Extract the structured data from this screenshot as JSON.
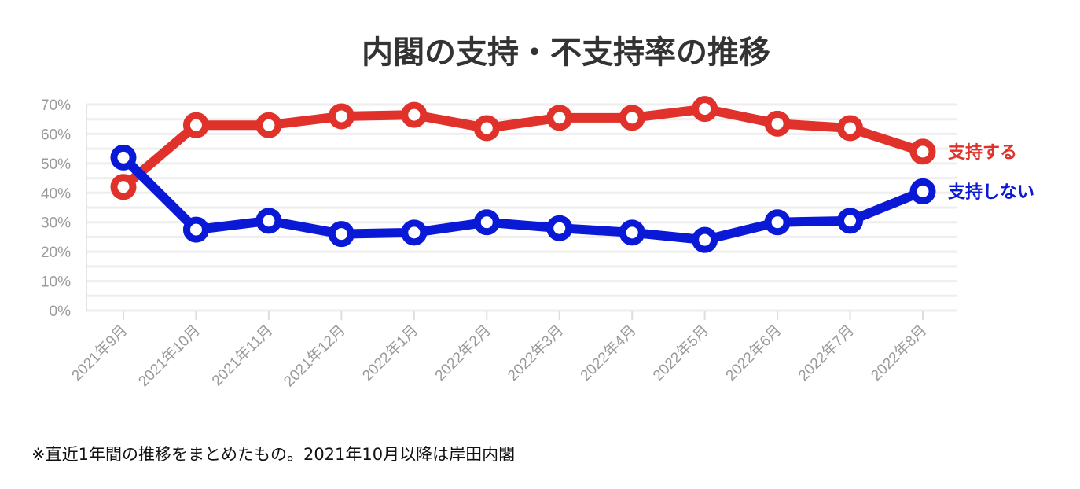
{
  "chart_data": {
    "type": "line",
    "title": "内閣の支持・不支持率の推移",
    "xlabel": "",
    "ylabel": "",
    "ylim": [
      0,
      70
    ],
    "y_ticks": [
      "0%",
      "10%",
      "20%",
      "30%",
      "40%",
      "50%",
      "60%",
      "70%"
    ],
    "y_tick_values": [
      0,
      10,
      20,
      30,
      40,
      50,
      60,
      70
    ],
    "categories": [
      "2021年9月",
      "2021年10月",
      "2021年11月",
      "2021年12月",
      "2022年1月",
      "2022年2月",
      "2022年3月",
      "2022年4月",
      "2022年5月",
      "2022年6月",
      "2022年7月",
      "2022年8月"
    ],
    "grid": true,
    "legend": "end-of-line labels (right)",
    "series": [
      {
        "name": "支持する",
        "color": "#e0312a",
        "values": [
          42,
          63,
          63,
          66,
          66.5,
          62,
          65.5,
          65.5,
          68.5,
          63.5,
          62,
          54
        ]
      },
      {
        "name": "支持しない",
        "color": "#0a19d6",
        "values": [
          52,
          27.5,
          30.5,
          26,
          26.5,
          30,
          28,
          26.5,
          24,
          30,
          30.5,
          40.5
        ]
      }
    ]
  },
  "footnote": "※直近1年間の推移をまとめたもの。2021年10月以降は岸田内閣"
}
